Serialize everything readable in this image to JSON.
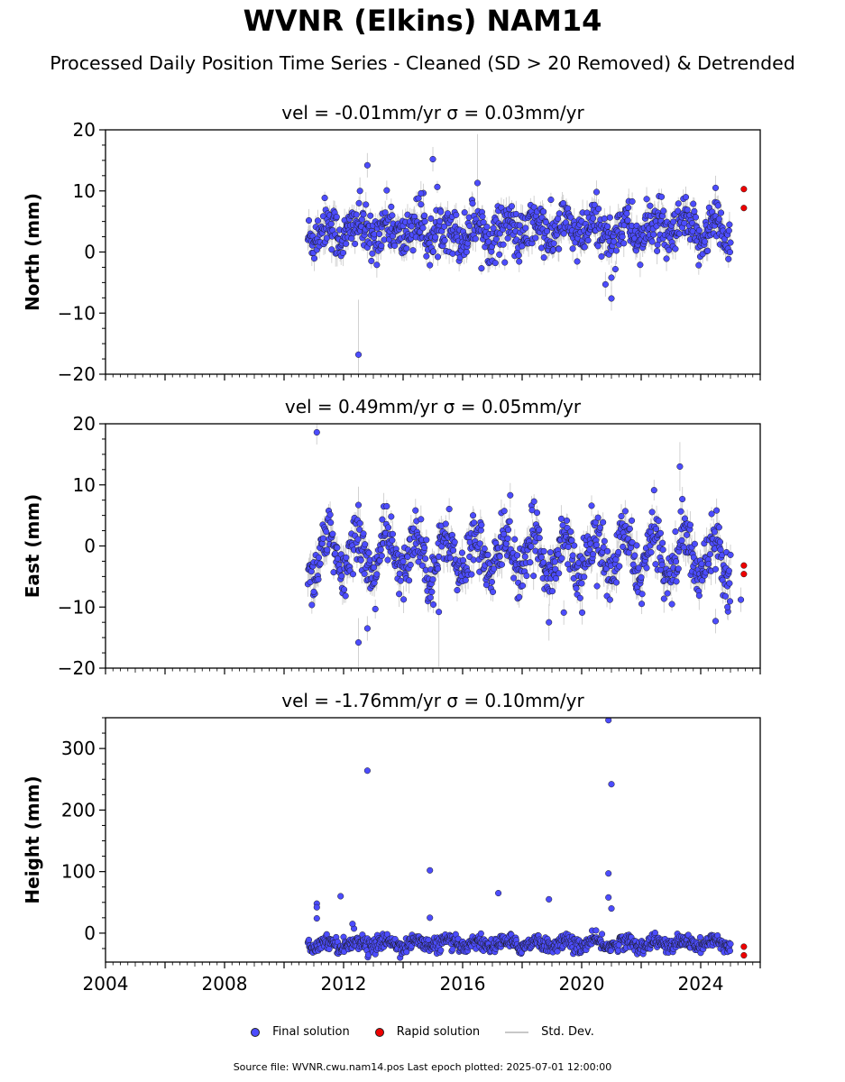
{
  "title": "WVNR (Elkins) NAM14",
  "subtitle": "Processed Daily Position Time Series - Cleaned (SD > 20 Removed) & Detrended",
  "colors": {
    "final": "#4c4cff",
    "rapid": "#ee0000",
    "std_dev": "#c8c8c8",
    "marker_edge": "#1a1a1a"
  },
  "legend": {
    "final_label": "Final solution",
    "rapid_label": "Rapid solution",
    "std_label": "Std. Dev."
  },
  "footer": "Source file: WVNR.cwu.nam14.pos  Last epoch plotted: 2025-07-01 12:00:00",
  "chart_data": [
    {
      "type": "scatter",
      "title": "vel = -0.01mm/yr   σ = 0.03mm/yr",
      "ylabel": "North (mm)",
      "xlim": [
        2004,
        2026
      ],
      "ylim": [
        -20,
        20
      ],
      "yticks": [
        -20,
        -10,
        0,
        10,
        20
      ],
      "ytick_labels": [
        "−20",
        "−10",
        "0",
        "10",
        "20"
      ],
      "minor_ytick_step": 2.5,
      "xticks": [
        2004,
        2008,
        2012,
        2016,
        2020,
        2024
      ],
      "show_xtick_labels": false,
      "final_solution": {
        "date_range": [
          2010.8,
          2025.0
        ],
        "center": 3.5,
        "spread": 2.0,
        "seasonal_amplitude": 1.5,
        "typical_std_dev": 1.5
      },
      "outliers": [
        {
          "x": 2012.5,
          "y": -16.8,
          "sd": 9
        },
        {
          "x": 2012.8,
          "y": 14.2,
          "sd": 2
        },
        {
          "x": 2015.0,
          "y": 15.2,
          "sd": 2
        },
        {
          "x": 2016.5,
          "y": 11.3,
          "sd": 8
        },
        {
          "x": 2020.8,
          "y": -5.3,
          "sd": 2
        },
        {
          "x": 2021.0,
          "y": -7.6,
          "sd": 2
        },
        {
          "x": 2021.0,
          "y": -4.2,
          "sd": 2
        },
        {
          "x": 2024.5,
          "y": 10.5,
          "sd": 2
        },
        {
          "x": 2014.6,
          "y": 9.6,
          "sd": 2
        }
      ],
      "rapid_solution": [
        {
          "x": 2025.45,
          "y": 10.3
        },
        {
          "x": 2025.45,
          "y": 7.2
        }
      ]
    },
    {
      "type": "scatter",
      "title": "vel = 0.49mm/yr   σ = 0.05mm/yr",
      "ylabel": "East (mm)",
      "xlim": [
        2004,
        2026
      ],
      "ylim": [
        -20,
        20
      ],
      "yticks": [
        -20,
        -10,
        0,
        10,
        20
      ],
      "ytick_labels": [
        "−20",
        "−10",
        "0",
        "10",
        "20"
      ],
      "minor_ytick_step": 2.5,
      "xticks": [
        2004,
        2008,
        2012,
        2016,
        2020,
        2024
      ],
      "show_xtick_labels": false,
      "final_solution": {
        "date_range": [
          2010.8,
          2025.0
        ],
        "center": -1.5,
        "spread": 2.2,
        "seasonal_amplitude": 3.5,
        "typical_std_dev": 1.6
      },
      "outliers": [
        {
          "x": 2011.1,
          "y": 18.6,
          "sd": 2
        },
        {
          "x": 2012.5,
          "y": -15.8,
          "sd": 4
        },
        {
          "x": 2012.5,
          "y": 6.7,
          "sd": 3
        },
        {
          "x": 2012.8,
          "y": -13.5,
          "sd": 2
        },
        {
          "x": 2015.2,
          "y": -10.8,
          "sd": 9
        },
        {
          "x": 2018.9,
          "y": -12.5,
          "sd": 3
        },
        {
          "x": 2019.4,
          "y": -10.9,
          "sd": 2
        },
        {
          "x": 2023.3,
          "y": 13.0,
          "sd": 4
        },
        {
          "x": 2024.5,
          "y": -12.3,
          "sd": 2
        },
        {
          "x": 2024.9,
          "y": -10.0,
          "sd": 2
        },
        {
          "x": 2025.35,
          "y": -8.8,
          "sd": 2
        },
        {
          "x": 2011.0,
          "y": -7.5,
          "sd": 2
        },
        {
          "x": 2017.6,
          "y": 8.3,
          "sd": 2
        }
      ],
      "rapid_solution": [
        {
          "x": 2025.45,
          "y": -3.2
        },
        {
          "x": 2025.45,
          "y": -4.6
        }
      ]
    },
    {
      "type": "scatter",
      "title": "vel = -1.76mm/yr   σ = 0.10mm/yr",
      "ylabel": "Height (mm)",
      "xlim": [
        2004,
        2026
      ],
      "ylim": [
        -47,
        350
      ],
      "yticks": [
        0,
        100,
        200,
        300
      ],
      "ytick_labels": [
        "0",
        "100",
        "200",
        "300"
      ],
      "minor_ytick_step": 25,
      "xticks": [
        2004,
        2008,
        2012,
        2016,
        2020,
        2024
      ],
      "show_xtick_labels": true,
      "final_solution": {
        "date_range": [
          2010.8,
          2025.0
        ],
        "center": -17,
        "spread": 6,
        "seasonal_amplitude": 5,
        "typical_std_dev": 3
      },
      "outliers": [
        {
          "x": 2012.8,
          "y": 264,
          "sd": 4
        },
        {
          "x": 2014.9,
          "y": 102,
          "sd": 2
        },
        {
          "x": 2017.2,
          "y": 65,
          "sd": 2
        },
        {
          "x": 2018.9,
          "y": 55,
          "sd": 2
        },
        {
          "x": 2020.9,
          "y": 346,
          "sd": 2
        },
        {
          "x": 2021.0,
          "y": 242,
          "sd": 2
        },
        {
          "x": 2020.9,
          "y": 97,
          "sd": 2
        },
        {
          "x": 2020.9,
          "y": 58,
          "sd": 2
        },
        {
          "x": 2021.0,
          "y": 40,
          "sd": 2
        },
        {
          "x": 2011.1,
          "y": 48,
          "sd": 2
        },
        {
          "x": 2011.1,
          "y": 42,
          "sd": 2
        },
        {
          "x": 2011.9,
          "y": 60,
          "sd": 2
        },
        {
          "x": 2014.9,
          "y": 25,
          "sd": 2
        },
        {
          "x": 2011.1,
          "y": 24,
          "sd": 2
        },
        {
          "x": 2012.3,
          "y": 15,
          "sd": 2
        }
      ],
      "rapid_solution": [
        {
          "x": 2025.45,
          "y": -22
        },
        {
          "x": 2025.45,
          "y": -36
        }
      ]
    }
  ]
}
